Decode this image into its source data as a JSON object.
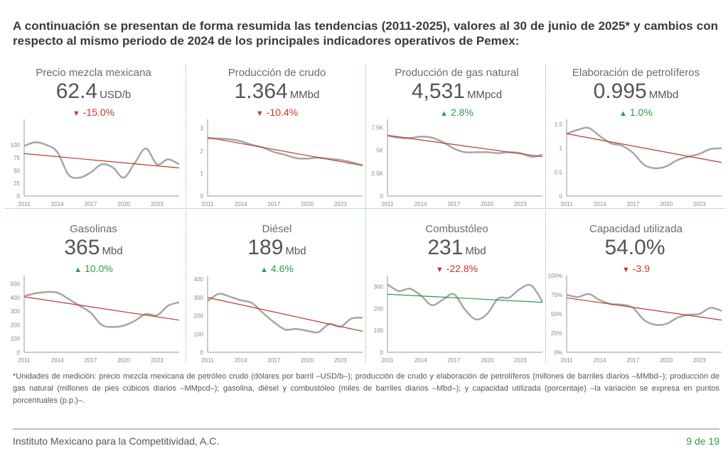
{
  "header": {
    "title": "A continuación se presentan de forma resumida las tendencias (2011-2025), valores al 30 de junio de 2025* y cambios con respecto al mismo periodo de 2024 de los principales indicadores operativos de Pemex:"
  },
  "colors": {
    "up": "#2e9b45",
    "down": "#c0392b",
    "series": "#a6a6a6",
    "trend_default": "#c0392b",
    "trend_combustoleo": "#2e9b45",
    "divider": "#7cc48a"
  },
  "indicators": [
    {
      "name": "Precio mezcla mexicana",
      "value": "62.4",
      "unit": "USD/b",
      "change": "-15.0%",
      "direction": "down"
    },
    {
      "name": "Producción de crudo",
      "value": "1.364",
      "unit": "MMbd",
      "change": "-10.4%",
      "direction": "down"
    },
    {
      "name": "Producción de gas natural",
      "value": "4,531",
      "unit": "MMpcd",
      "change": "2.8%",
      "direction": "up"
    },
    {
      "name": "Elaboración de petrolíferos",
      "value": "0.995",
      "unit": "MMbd",
      "change": "1.0%",
      "direction": "up"
    },
    {
      "name": "Gasolinas",
      "value": "365",
      "unit": "Mbd",
      "change": "10.0%",
      "direction": "up"
    },
    {
      "name": "Diésel",
      "value": "189",
      "unit": "Mbd",
      "change": "4.6%",
      "direction": "up"
    },
    {
      "name": "Combustóleo",
      "value": "231",
      "unit": "Mbd",
      "change": "-22.8%",
      "direction": "down"
    },
    {
      "name": "Capacidad utilizada",
      "value": "54.0%",
      "unit": "",
      "change": "-3.9",
      "direction": "down"
    }
  ],
  "chart_data": [
    {
      "type": "line",
      "x": [
        2011,
        2012,
        2013,
        2014,
        2015,
        2016,
        2017,
        2018,
        2019,
        2020,
        2021,
        2022,
        2023,
        2024,
        2025
      ],
      "series": [
        {
          "values": [
            98,
            105,
            100,
            86,
            42,
            36,
            46,
            62,
            56,
            36,
            65,
            93,
            62,
            72,
            62
          ]
        }
      ],
      "trend": [
        83,
        55
      ],
      "ylim": [
        0,
        150
      ],
      "yticks": [
        0,
        25,
        50,
        75,
        100
      ],
      "ytick_labels": [
        "0",
        "25",
        "50",
        "75",
        "100"
      ],
      "xtick_values": [
        2011,
        2014,
        2017,
        2020,
        2023
      ],
      "xtick_labels": [
        "2011",
        "2014",
        "2017",
        "2020",
        "2023"
      ]
    },
    {
      "type": "line",
      "x": [
        2011,
        2012,
        2013,
        2014,
        2015,
        2016,
        2017,
        2018,
        2019,
        2020,
        2021,
        2022,
        2023,
        2024,
        2025
      ],
      "series": [
        {
          "values": [
            2.55,
            2.55,
            2.52,
            2.43,
            2.27,
            2.15,
            1.95,
            1.83,
            1.68,
            1.66,
            1.7,
            1.65,
            1.6,
            1.5,
            1.36
          ]
        }
      ],
      "trend": [
        2.6,
        1.35
      ],
      "ylim": [
        0,
        3.4
      ],
      "yticks": [
        0,
        1,
        2,
        3
      ],
      "ytick_labels": [
        "0",
        "1",
        "2",
        "3"
      ],
      "xtick_values": [
        2011,
        2014,
        2017,
        2020,
        2023
      ],
      "xtick_labels": [
        "2011",
        "2014",
        "2017",
        "2020",
        "2023"
      ]
    },
    {
      "type": "line",
      "x": [
        2011,
        2012,
        2013,
        2014,
        2015,
        2016,
        2017,
        2018,
        2019,
        2020,
        2021,
        2022,
        2023,
        2024,
        2025
      ],
      "series": [
        {
          "values": [
            6600,
            6400,
            6350,
            6500,
            6400,
            5900,
            5200,
            4800,
            4800,
            4800,
            4700,
            4800,
            4700,
            4300,
            4531
          ]
        }
      ],
      "trend": [
        6650,
        4300
      ],
      "ylim": [
        0,
        8400
      ],
      "yticks": [
        0,
        2500,
        5000,
        7500
      ],
      "ytick_labels": [
        "0",
        "2.5K",
        "5K",
        "7.5K"
      ],
      "xtick_values": [
        2011,
        2014,
        2017,
        2020,
        2023
      ],
      "xtick_labels": [
        "2011",
        "2014",
        "2017",
        "2020",
        "2023"
      ]
    },
    {
      "type": "line",
      "x": [
        2011,
        2012,
        2013,
        2014,
        2015,
        2016,
        2017,
        2018,
        2019,
        2020,
        2021,
        2022,
        2023,
        2024,
        2025
      ],
      "series": [
        {
          "values": [
            1.3,
            1.38,
            1.42,
            1.25,
            1.1,
            1.05,
            0.9,
            0.65,
            0.58,
            0.62,
            0.75,
            0.82,
            0.88,
            0.98,
            0.995
          ]
        }
      ],
      "trend": [
        1.3,
        0.7
      ],
      "ylim": [
        0,
        1.6
      ],
      "yticks": [
        0,
        0.5,
        1,
        1.5
      ],
      "ytick_labels": [
        "0",
        "0.5",
        "1",
        "1.5"
      ],
      "xtick_values": [
        2011,
        2014,
        2017,
        2020,
        2023
      ],
      "xtick_labels": [
        "2011",
        "2014",
        "2017",
        "2020",
        "2023"
      ]
    },
    {
      "type": "line",
      "x": [
        2011,
        2012,
        2013,
        2014,
        2015,
        2016,
        2017,
        2018,
        2019,
        2020,
        2021,
        2022,
        2023,
        2024,
        2025
      ],
      "series": [
        {
          "values": [
            410,
            430,
            440,
            435,
            390,
            340,
            290,
            200,
            185,
            195,
            230,
            280,
            270,
            340,
            365
          ]
        }
      ],
      "trend": [
        405,
        235
      ],
      "ylim": [
        0,
        560
      ],
      "yticks": [
        0,
        100,
        200,
        300,
        400,
        500
      ],
      "ytick_labels": [
        "0",
        "100",
        "200",
        "300",
        "400",
        "500"
      ],
      "xtick_values": [
        2011,
        2014,
        2017,
        2020,
        2023
      ],
      "xtick_labels": [
        "2011",
        "2014",
        "2017",
        "2020",
        "2023"
      ]
    },
    {
      "type": "line",
      "x": [
        2011,
        2012,
        2013,
        2014,
        2015,
        2016,
        2017,
        2018,
        2019,
        2020,
        2021,
        2022,
        2023,
        2024,
        2025
      ],
      "series": [
        {
          "values": [
            280,
            320,
            305,
            285,
            270,
            215,
            165,
            125,
            128,
            118,
            110,
            155,
            140,
            185,
            189
          ]
        }
      ],
      "trend": [
        300,
        115
      ],
      "ylim": [
        0,
        420
      ],
      "yticks": [
        0,
        100,
        200,
        300,
        400
      ],
      "ytick_labels": [
        "0",
        "100",
        "200",
        "300",
        "400"
      ],
      "xtick_values": [
        2011,
        2014,
        2017,
        2020,
        2023
      ],
      "xtick_labels": [
        "2011",
        "2014",
        "2017",
        "2020",
        "2023"
      ]
    },
    {
      "type": "line",
      "x": [
        2011,
        2012,
        2013,
        2014,
        2015,
        2016,
        2017,
        2018,
        2019,
        2020,
        2021,
        2022,
        2023,
        2024,
        2025
      ],
      "series": [
        {
          "values": [
            310,
            280,
            290,
            260,
            215,
            240,
            265,
            195,
            150,
            175,
            245,
            250,
            290,
            305,
            231
          ]
        }
      ],
      "trend": [
        265,
        228
      ],
      "ylim": [
        0,
        350
      ],
      "yticks": [
        0,
        100,
        200,
        300
      ],
      "ytick_labels": [
        "0",
        "100",
        "200",
        "300"
      ],
      "xtick_values": [
        2011,
        2014,
        2017,
        2020,
        2023
      ],
      "xtick_labels": [
        "2011",
        "2014",
        "2017",
        "2020",
        "2023"
      ]
    },
    {
      "type": "line",
      "x": [
        2011,
        2012,
        2013,
        2014,
        2015,
        2016,
        2017,
        2018,
        2019,
        2020,
        2021,
        2022,
        2023,
        2024,
        2025
      ],
      "series": [
        {
          "values": [
            75,
            72,
            76,
            68,
            63,
            62,
            58,
            42,
            36,
            37,
            45,
            49,
            50,
            58,
            54
          ]
        }
      ],
      "trend": [
        71,
        42
      ],
      "ylim": [
        0,
        100
      ],
      "yticks": [
        0,
        25,
        50,
        75,
        100
      ],
      "ytick_labels": [
        "0%",
        "25%",
        "50%",
        "75%",
        "100%"
      ],
      "xtick_values": [
        2011,
        2014,
        2017,
        2020,
        2023
      ],
      "xtick_labels": [
        "2011",
        "2014",
        "2017",
        "2020",
        "2023"
      ]
    }
  ],
  "footnote": "*Unidades de medición: precio mezcla mexicana de petróleo crudo (dólares por barril –USD/b–); producción de crudo y elaboración de petrolíferos (millones de barriles diarios –MMbd–); producción de gas natural (millones de pies cúbicos diarios –MMpcd–); gasolina, diésel y combustóleo (miles de barriles diarios –Mbd–); y capacidad utilizada (porcentaje) –la variación se expresa en puntos porcentuales (p.p.)–.",
  "footer": {
    "organization": "Instituto Mexicano para la Competitividad, A.C.",
    "page": "9 de 19"
  }
}
